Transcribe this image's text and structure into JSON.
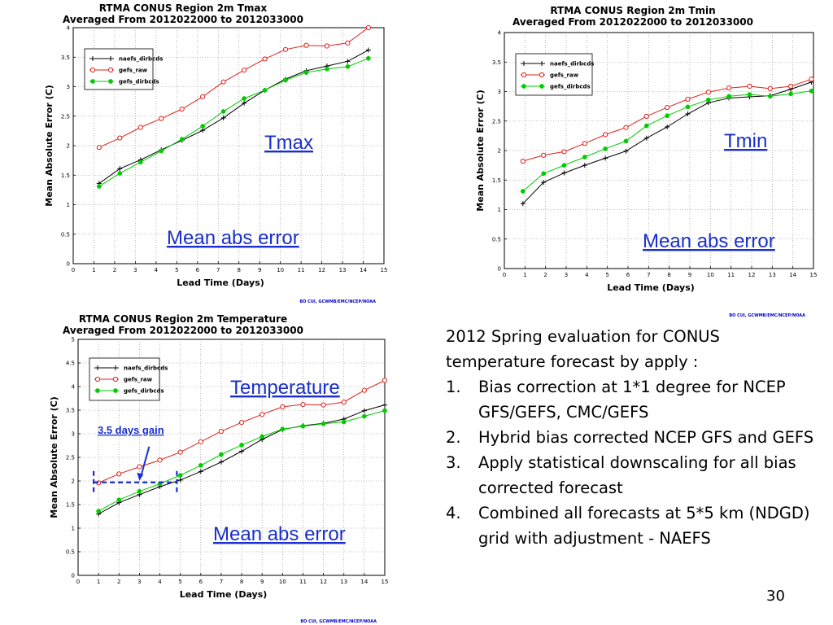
{
  "colors": {
    "naefs": "#000000",
    "gefs_raw": "#e0201b",
    "gefs_dirbcds": "#00cc00",
    "annotation": "#1a2fcc"
  },
  "notes": {
    "intro": "2012 Spring evaluation for CONUS temperature forecast by apply :",
    "items": [
      {
        "num": "1.",
        "text": "Bias correction at 1*1 degree for NCEP GFS/GEFS, CMC/GEFS"
      },
      {
        "num": "2.",
        "text": "Hybrid  bias corrected NCEP GFS and GEFS"
      },
      {
        "num": "3.",
        "text": "Apply statistical downscaling for all bias corrected forecast"
      },
      {
        "num": "4.",
        "text": "Combined all forecasts at 5*5 km (NDGD) grid with adjustment - NAEFS"
      }
    ]
  },
  "slide_number": "30",
  "chart_data": [
    {
      "type": "line",
      "title": "RTMA CONUS Region 2m Tmax",
      "subtitle": "Averaged From  2012022000  to  2012033000",
      "xlabel": "Lead Time (Days)",
      "ylabel": "Mean Absolute Error (C)",
      "xlim": [
        0,
        15
      ],
      "ylim": [
        0,
        4
      ],
      "xticks": [
        "0",
        "1",
        "2",
        "3",
        "4",
        "5",
        "6",
        "7",
        "8",
        "9",
        "10",
        "11",
        "12",
        "13",
        "14",
        "15"
      ],
      "yticks": [
        "0",
        "0.5",
        "1",
        "1.5",
        "2",
        "2.5",
        "3",
        "3.5",
        "4"
      ],
      "grid": true,
      "legend_position": "top-left",
      "annotations": [
        "Tmax",
        "Mean abs error"
      ],
      "credit": "BO CUI, GCWMB/EMC/NCEP/NOAA",
      "series": [
        {
          "name": "naefs_dirbcds",
          "marker": "plus",
          "color": "#000000",
          "x": [
            1.25,
            2.25,
            3.25,
            4.25,
            5.25,
            6.25,
            7.25,
            8.25,
            9.25,
            10.25,
            11.25,
            12.25,
            13.25,
            14.25
          ],
          "y": [
            1.36,
            1.61,
            1.76,
            1.93,
            2.09,
            2.26,
            2.47,
            2.72,
            2.94,
            3.13,
            3.27,
            3.35,
            3.43,
            3.62
          ]
        },
        {
          "name": "gefs_raw",
          "marker": "circle",
          "color": "#e0201b",
          "x": [
            1.25,
            2.25,
            3.25,
            4.25,
            5.25,
            6.25,
            7.25,
            8.25,
            9.25,
            10.25,
            11.25,
            12.25,
            13.25,
            14.25
          ],
          "y": [
            1.97,
            2.13,
            2.31,
            2.46,
            2.62,
            2.83,
            3.08,
            3.28,
            3.47,
            3.63,
            3.7,
            3.69,
            3.74,
            4.0
          ]
        },
        {
          "name": "gefs_dirbcds",
          "marker": "dot",
          "color": "#00cc00",
          "x": [
            1.25,
            2.25,
            3.25,
            4.25,
            5.25,
            6.25,
            7.25,
            8.25,
            9.25,
            10.25,
            11.25,
            12.25,
            13.25,
            14.25
          ],
          "y": [
            1.31,
            1.53,
            1.72,
            1.91,
            2.11,
            2.33,
            2.58,
            2.8,
            2.94,
            3.11,
            3.24,
            3.3,
            3.34,
            3.48
          ]
        }
      ]
    },
    {
      "type": "line",
      "title": "RTMA CONUS Region 2m Tmin",
      "subtitle": "Averaged From  2012022000  to  2012033000",
      "xlabel": "Lead Time (Days)",
      "ylabel": "Mean Absolute Error (C)",
      "xlim": [
        0,
        15
      ],
      "ylim": [
        0,
        4
      ],
      "xticks": [
        "0",
        "1",
        "2",
        "3",
        "4",
        "5",
        "6",
        "7",
        "8",
        "9",
        "10",
        "11",
        "12",
        "13",
        "14",
        "15"
      ],
      "yticks": [
        "0",
        "0.5",
        "1",
        "1.5",
        "2",
        "2.5",
        "3",
        "3.5",
        "4"
      ],
      "grid": true,
      "legend_position": "top-left",
      "annotations": [
        "Tmin",
        "Mean abs error"
      ],
      "credit": "BO CUI, GCWMB/EMC/NCEP/NOAA",
      "series": [
        {
          "name": "naefs_dirbcds",
          "marker": "plus",
          "color": "#000000",
          "x": [
            0.9,
            1.9,
            2.9,
            3.9,
            4.9,
            5.9,
            6.9,
            7.9,
            8.9,
            9.9,
            10.9,
            11.9,
            12.9,
            13.9,
            14.9
          ],
          "y": [
            1.1,
            1.46,
            1.62,
            1.75,
            1.87,
            1.99,
            2.21,
            2.4,
            2.62,
            2.81,
            2.89,
            2.91,
            2.93,
            3.04,
            3.16
          ]
        },
        {
          "name": "gefs_raw",
          "marker": "circle",
          "color": "#e0201b",
          "x": [
            0.9,
            1.9,
            2.9,
            3.9,
            4.9,
            5.9,
            6.9,
            7.9,
            8.9,
            9.9,
            10.9,
            11.9,
            12.9,
            13.9,
            14.9
          ],
          "y": [
            1.82,
            1.92,
            1.98,
            2.12,
            2.27,
            2.39,
            2.58,
            2.73,
            2.87,
            2.99,
            3.06,
            3.09,
            3.05,
            3.09,
            3.21
          ]
        },
        {
          "name": "gefs_dirbcds",
          "marker": "dot",
          "color": "#00cc00",
          "x": [
            0.9,
            1.9,
            2.9,
            3.9,
            4.9,
            5.9,
            6.9,
            7.9,
            8.9,
            9.9,
            10.9,
            11.9,
            12.9,
            13.9,
            14.9
          ],
          "y": [
            1.31,
            1.61,
            1.75,
            1.89,
            2.03,
            2.16,
            2.42,
            2.59,
            2.74,
            2.86,
            2.92,
            2.95,
            2.92,
            2.96,
            3.01
          ]
        }
      ]
    },
    {
      "type": "line",
      "title": "RTMA CONUS Region 2m Temperature",
      "subtitle": "Averaged From  2012022000  to  2012033000",
      "xlabel": "Lead Time (Days)",
      "ylabel": "Mean Absolute Error (C)",
      "xlim": [
        0,
        15
      ],
      "ylim": [
        0,
        5
      ],
      "xticks": [
        "0",
        "1",
        "2",
        "3",
        "4",
        "5",
        "6",
        "7",
        "8",
        "9",
        "10",
        "11",
        "12",
        "13",
        "14",
        "15"
      ],
      "yticks": [
        "0",
        "0.5",
        "1",
        "1.5",
        "2",
        "2.5",
        "3",
        "3.5",
        "4",
        "4.5",
        "5"
      ],
      "grid": true,
      "legend_position": "top-left",
      "annotations": [
        "Temperature",
        "Mean abs error",
        "3.5 days gain"
      ],
      "gain_marker": {
        "x_from": 1.0,
        "x_to": 4.75,
        "y": 1.97,
        "arrow_x": 3.0,
        "arrow_y": 1.97
      },
      "credit": "BO CUI, GCWMB/EMC/NCEP/NOAA",
      "series": [
        {
          "name": "naefs_dirbcds",
          "marker": "plus",
          "color": "#000000",
          "x": [
            1.0,
            2.0,
            3.0,
            4.0,
            5.0,
            6.0,
            7.0,
            8.0,
            9.0,
            10.0,
            11.0,
            12.0,
            13.0,
            14.0,
            15.0
          ],
          "y": [
            1.3,
            1.54,
            1.71,
            1.88,
            2.02,
            2.2,
            2.4,
            2.63,
            2.88,
            3.09,
            3.17,
            3.22,
            3.31,
            3.49,
            3.61
          ]
        },
        {
          "name": "gefs_raw",
          "marker": "circle",
          "color": "#e0201b",
          "x": [
            1.0,
            2.0,
            3.0,
            4.0,
            5.0,
            6.0,
            7.0,
            8.0,
            9.0,
            10.0,
            11.0,
            12.0,
            13.0,
            14.0,
            15.0
          ],
          "y": [
            1.96,
            2.15,
            2.3,
            2.44,
            2.61,
            2.83,
            3.05,
            3.24,
            3.41,
            3.57,
            3.62,
            3.61,
            3.67,
            3.92,
            4.13
          ]
        },
        {
          "name": "gefs_dirbcds",
          "marker": "dot",
          "color": "#00cc00",
          "x": [
            1.0,
            2.0,
            3.0,
            4.0,
            5.0,
            6.0,
            7.0,
            8.0,
            9.0,
            10.0,
            11.0,
            12.0,
            13.0,
            14.0,
            15.0
          ],
          "y": [
            1.36,
            1.6,
            1.78,
            1.94,
            2.12,
            2.33,
            2.56,
            2.76,
            2.94,
            3.1,
            3.16,
            3.21,
            3.25,
            3.37,
            3.49
          ]
        }
      ]
    }
  ]
}
